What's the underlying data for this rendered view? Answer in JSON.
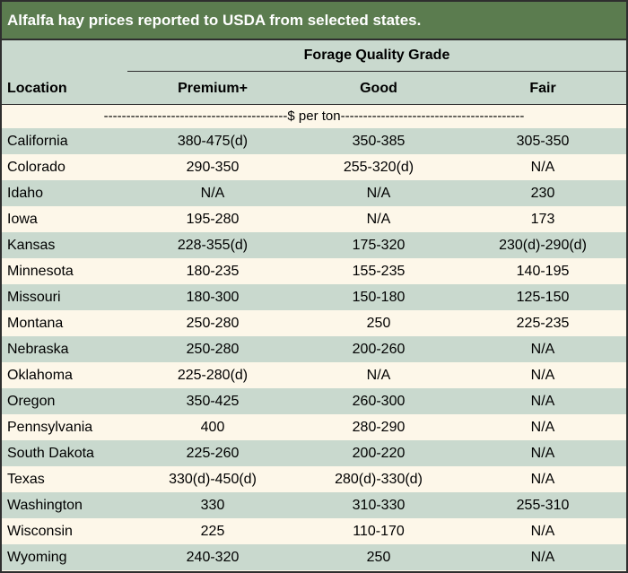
{
  "title": "Alfalfa hay prices reported to USDA from selected states.",
  "header": {
    "group_label": "Forage Quality Grade",
    "location_label": "Location",
    "columns": [
      "Premium+",
      "Good",
      "Fair"
    ]
  },
  "unit_row": "-----------------------------------------$ per ton-----------------------------------------",
  "rows": [
    {
      "location": "California",
      "premium": "380-475(d)",
      "good": "350-385",
      "fair": "305-350"
    },
    {
      "location": "Colorado",
      "premium": "290-350",
      "good": "255-320(d)",
      "fair": "N/A"
    },
    {
      "location": "Idaho",
      "premium": "N/A",
      "good": "N/A",
      "fair": "230"
    },
    {
      "location": "Iowa",
      "premium": "195-280",
      "good": "N/A",
      "fair": "173"
    },
    {
      "location": "Kansas",
      "premium": "228-355(d)",
      "good": "175-320",
      "fair": "230(d)-290(d)"
    },
    {
      "location": "Minnesota",
      "premium": "180-235",
      "good": "155-235",
      "fair": "140-195"
    },
    {
      "location": "Missouri",
      "premium": "180-300",
      "good": "150-180",
      "fair": "125-150"
    },
    {
      "location": "Montana",
      "premium": "250-280",
      "good": "250",
      "fair": "225-235"
    },
    {
      "location": "Nebraska",
      "premium": "250-280",
      "good": "200-260",
      "fair": "N/A"
    },
    {
      "location": "Oklahoma",
      "premium": "225-280(d)",
      "good": "N/A",
      "fair": "N/A"
    },
    {
      "location": "Oregon",
      "premium": "350-425",
      "good": "260-300",
      "fair": "N/A"
    },
    {
      "location": "Pennsylvania",
      "premium": "400",
      "good": "280-290",
      "fair": "N/A"
    },
    {
      "location": "South Dakota",
      "premium": "225-260",
      "good": "200-220",
      "fair": "N/A"
    },
    {
      "location": "Texas",
      "premium": "330(d)-450(d)",
      "good": "280(d)-330(d)",
      "fair": "N/A"
    },
    {
      "location": "Washington",
      "premium": "330",
      "good": "310-330",
      "fair": "255-310"
    },
    {
      "location": "Wisconsin",
      "premium": "225",
      "good": "110-170",
      "fair": "N/A"
    },
    {
      "location": "Wyoming",
      "premium": "240-320",
      "good": "250",
      "fair": "N/A"
    }
  ]
}
